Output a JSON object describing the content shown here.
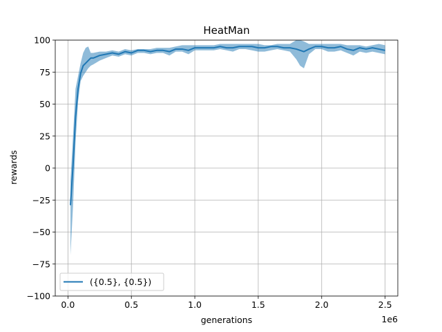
{
  "chart_data": {
    "type": "line",
    "title": "HeatMan",
    "xlabel": "generations",
    "ylabel": "rewards",
    "x_scale_label": "1e6",
    "xlim": [
      -0.1,
      2.6
    ],
    "ylim": [
      -100,
      100
    ],
    "xticks": [
      0.0,
      0.5,
      1.0,
      1.5,
      2.0,
      2.5
    ],
    "xtick_labels": [
      "0.0",
      "0.5",
      "1.0",
      "1.5",
      "2.0",
      "2.5"
    ],
    "yticks": [
      -100,
      -75,
      -50,
      -25,
      0,
      25,
      50,
      75,
      100
    ],
    "ytick_labels": [
      "−100",
      "−75",
      "−50",
      "−25",
      "0",
      "25",
      "50",
      "75",
      "100"
    ],
    "grid": true,
    "legend_position": "lower-left",
    "colors": {
      "line": "#1f77b4",
      "band": "#1f77b4",
      "grid": "#b0b0b0"
    },
    "series": [
      {
        "name": "({0.5}, {0.5})",
        "x": [
          0.02,
          0.04,
          0.06,
          0.08,
          0.1,
          0.12,
          0.14,
          0.16,
          0.18,
          0.2,
          0.25,
          0.3,
          0.35,
          0.4,
          0.45,
          0.5,
          0.55,
          0.6,
          0.65,
          0.7,
          0.75,
          0.8,
          0.85,
          0.9,
          0.95,
          1.0,
          1.05,
          1.1,
          1.15,
          1.2,
          1.25,
          1.3,
          1.35,
          1.4,
          1.45,
          1.5,
          1.55,
          1.6,
          1.65,
          1.7,
          1.75,
          1.8,
          1.83,
          1.86,
          1.9,
          1.95,
          2.0,
          2.05,
          2.1,
          2.15,
          2.2,
          2.25,
          2.3,
          2.35,
          2.4,
          2.45,
          2.5
        ],
        "mean": [
          -29,
          2,
          40,
          62,
          74,
          80,
          82,
          84,
          86,
          86,
          88,
          89,
          90,
          89,
          91,
          90,
          92,
          92,
          91,
          92,
          92,
          91,
          93,
          93,
          92,
          94,
          94,
          94,
          94,
          95,
          94,
          94,
          95,
          95,
          95,
          94,
          94,
          95,
          95,
          94,
          94,
          93,
          92,
          91,
          93,
          95,
          95,
          94,
          94,
          95,
          93,
          92,
          94,
          93,
          94,
          93,
          92
        ],
        "upper": [
          -10,
          25,
          62,
          72,
          82,
          90,
          94,
          95,
          90,
          90,
          91,
          91,
          92,
          91,
          93,
          92,
          93,
          93,
          93,
          94,
          94,
          94,
          95,
          96,
          96,
          96,
          96,
          96,
          96,
          97,
          97,
          97,
          97,
          97,
          97,
          97,
          96,
          96,
          97,
          97,
          97,
          100,
          100,
          99,
          97,
          97,
          97,
          97,
          97,
          97,
          96,
          96,
          96,
          95,
          96,
          97,
          96
        ],
        "lower": [
          -68,
          -30,
          20,
          52,
          68,
          72,
          75,
          78,
          80,
          81,
          84,
          86,
          88,
          87,
          89,
          88,
          90,
          90,
          89,
          90,
          90,
          88,
          91,
          91,
          89,
          92,
          92,
          92,
          92,
          93,
          92,
          91,
          93,
          93,
          92,
          91,
          91,
          92,
          93,
          92,
          91,
          85,
          80,
          78,
          89,
          93,
          93,
          91,
          91,
          92,
          90,
          88,
          91,
          90,
          91,
          90,
          89
        ]
      }
    ]
  }
}
